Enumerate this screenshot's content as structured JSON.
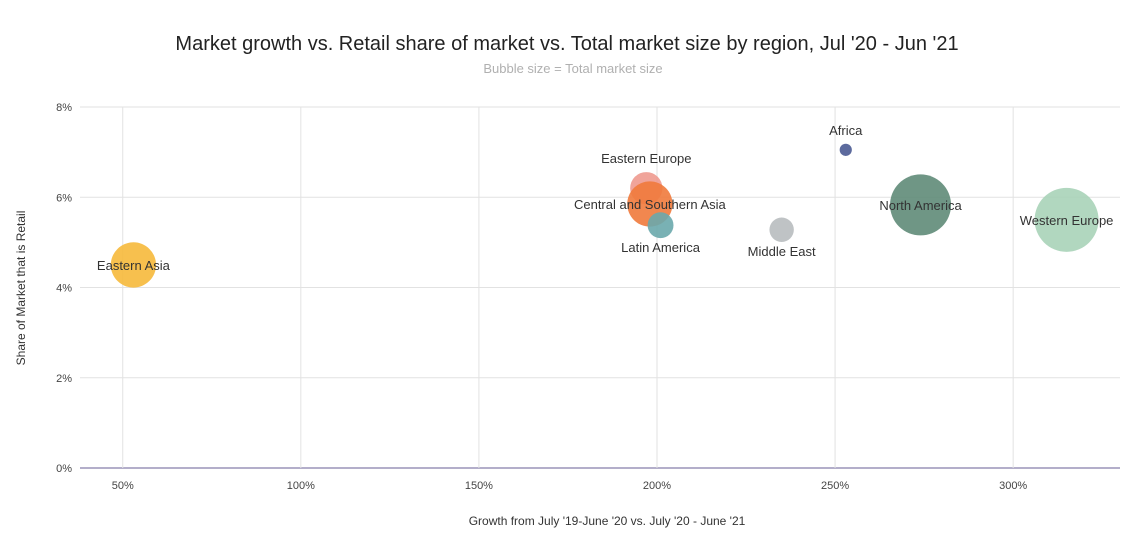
{
  "chart_data": {
    "type": "bubble",
    "title": "Market growth vs. Retail share of market vs. Total market size by region, Jul '20 - Jun '21",
    "subtitle": "Bubble size = Total market size",
    "xlabel": "Growth from July '19-June '20 vs. July '20 - June '21",
    "ylabel": "Share of Market that is Retail",
    "xlim": [
      0.38,
      3.3
    ],
    "ylim": [
      0,
      0.08
    ],
    "x_ticks": [
      {
        "value": 0.5,
        "label": "50%"
      },
      {
        "value": 1.0,
        "label": "100%"
      },
      {
        "value": 1.5,
        "label": "150%"
      },
      {
        "value": 2.0,
        "label": "200%"
      },
      {
        "value": 2.5,
        "label": "250%"
      },
      {
        "value": 3.0,
        "label": "300%"
      }
    ],
    "y_ticks": [
      {
        "value": 0.0,
        "label": "0%"
      },
      {
        "value": 0.02,
        "label": "2%"
      },
      {
        "value": 0.04,
        "label": "4%"
      },
      {
        "value": 0.06,
        "label": "6%"
      },
      {
        "value": 0.08,
        "label": "8%"
      }
    ],
    "grid": true,
    "legend": "none",
    "points": [
      {
        "name": "Eastern Asia",
        "x": 0.53,
        "y": 0.045,
        "size": 0.55,
        "color": "#f6b93b",
        "label_pos": "center"
      },
      {
        "name": "Eastern Europe",
        "x": 1.97,
        "y": 0.062,
        "size": 0.28,
        "color": "#ee9a8f",
        "label_pos": "above"
      },
      {
        "name": "Central and Southern Asia",
        "x": 1.98,
        "y": 0.0585,
        "size": 0.55,
        "color": "#f07a3c",
        "label_pos": "center"
      },
      {
        "name": "Latin America",
        "x": 2.01,
        "y": 0.0538,
        "size": 0.18,
        "color": "#6aa8ac",
        "label_pos": "below"
      },
      {
        "name": "Africa",
        "x": 2.53,
        "y": 0.0705,
        "size": 0.04,
        "color": "#4a5a92",
        "label_pos": "above"
      },
      {
        "name": "Middle East",
        "x": 2.35,
        "y": 0.0528,
        "size": 0.16,
        "color": "#b8bcbf",
        "label_pos": "below"
      },
      {
        "name": "North America",
        "x": 2.74,
        "y": 0.0583,
        "size": 1.0,
        "color": "#5f8b78",
        "label_pos": "center"
      },
      {
        "name": "Western Europe",
        "x": 3.15,
        "y": 0.055,
        "size": 1.1,
        "color": "#a8d3b8",
        "label_pos": "center"
      }
    ]
  }
}
